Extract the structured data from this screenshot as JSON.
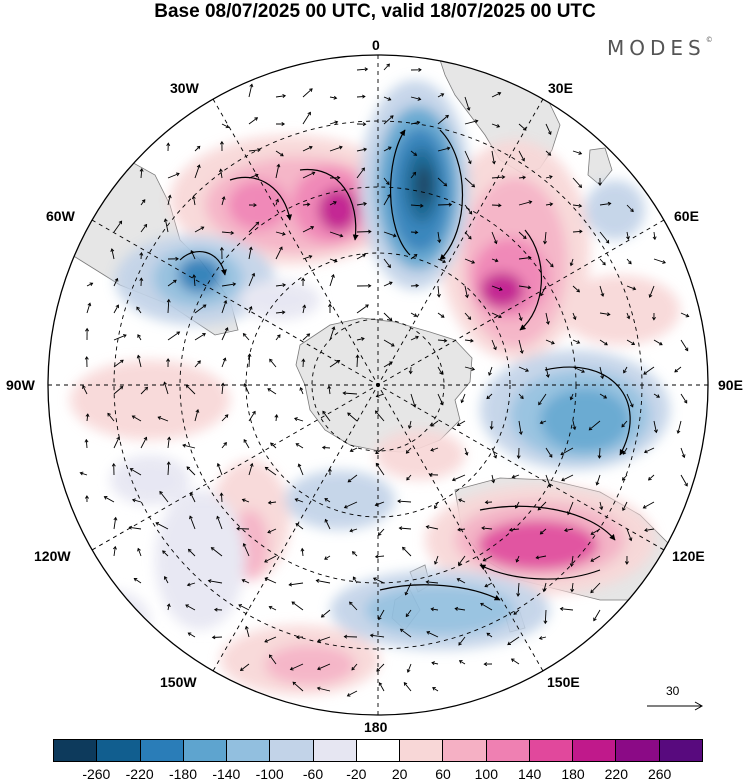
{
  "title": "Base 08/07/2025 00 UTC, valid 18/07/2025 00 UTC",
  "logo": "MODES",
  "logo_mark": "©",
  "longitude_labels": {
    "lon_0": "0",
    "lon_30e": "30E",
    "lon_60e": "60E",
    "lon_90e": "90E",
    "lon_120e": "120E",
    "lon_150e": "150E",
    "lon_180": "180",
    "lon_150w": "150W",
    "lon_120w": "120W",
    "lon_90w": "90W",
    "lon_60w": "60W",
    "lon_30w": "30W"
  },
  "reference_vector": "30",
  "colorbar": {
    "ticks": [
      "-260",
      "-220",
      "-180",
      "-140",
      "-100",
      "-60",
      "-20",
      "20",
      "60",
      "100",
      "140",
      "180",
      "220",
      "260"
    ],
    "colors": [
      "#0d3a5c",
      "#115e8f",
      "#2a7db8",
      "#5ea4cf",
      "#92bfdf",
      "#c2d3e8",
      "#e6e6f2",
      "#ffffff",
      "#f8d7d7",
      "#f5b0c4",
      "#ef80b2",
      "#e1489c",
      "#c0198b",
      "#8b0a86",
      "#580a7e"
    ]
  },
  "colors": {
    "land": "#e8e8e8",
    "coast": "#777777",
    "grid": "#000000"
  }
}
